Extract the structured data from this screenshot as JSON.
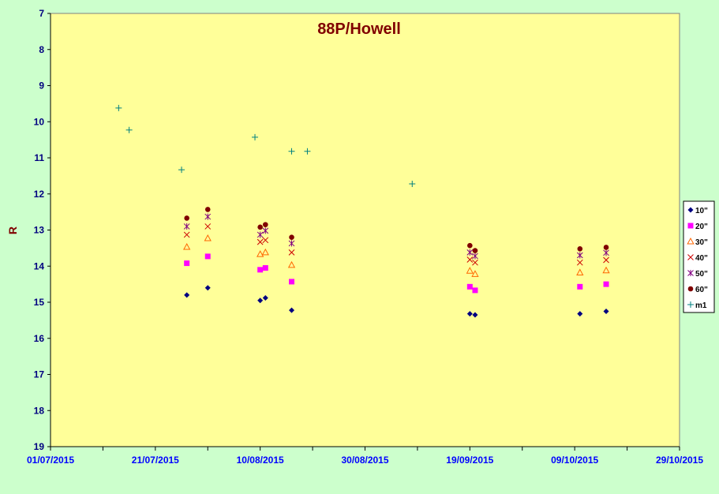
{
  "chart_data": {
    "type": "scatter",
    "title": "88P/Howell",
    "xlabel": "",
    "ylabel": "R",
    "ylim": [
      7,
      19
    ],
    "y_inverted": true,
    "yticks": [
      "7",
      "8",
      "9",
      "10",
      "11",
      "12",
      "13",
      "14",
      "15",
      "16",
      "17",
      "18",
      "19"
    ],
    "xlim": [
      "2015-07-01",
      "2015-10-29"
    ],
    "xticks": [
      "01/07/2015",
      "21/07/2015",
      "10/08/2015",
      "30/08/2015",
      "19/09/2015",
      "09/10/2015",
      "29/10/2015"
    ],
    "grid": false,
    "legend_position": "right",
    "colors": {
      "background": "#ccffcc",
      "plot_area": "#ffff99",
      "title": "#800000",
      "y_tick_labels": "#000080",
      "x_tick_labels": "#0000ff"
    },
    "series": [
      {
        "name": "10\"",
        "marker": "diamond",
        "color": "#000080",
        "points": [
          [
            "2015-07-27",
            14.8
          ],
          [
            "2015-07-31",
            14.6
          ],
          [
            "2015-08-10",
            14.95
          ],
          [
            "2015-08-11",
            14.88
          ],
          [
            "2015-08-16",
            15.22
          ],
          [
            "2015-09-19",
            15.32
          ],
          [
            "2015-09-20",
            15.35
          ],
          [
            "2015-10-10",
            15.32
          ],
          [
            "2015-10-15",
            15.25
          ]
        ]
      },
      {
        "name": "20\"",
        "marker": "square",
        "color": "#ff00ff",
        "points": [
          [
            "2015-07-27",
            13.92
          ],
          [
            "2015-07-31",
            13.73
          ],
          [
            "2015-08-10",
            14.1
          ],
          [
            "2015-08-11",
            14.05
          ],
          [
            "2015-08-16",
            14.43
          ],
          [
            "2015-09-19",
            14.57
          ],
          [
            "2015-09-20",
            14.67
          ],
          [
            "2015-10-10",
            14.57
          ],
          [
            "2015-10-15",
            14.5
          ]
        ]
      },
      {
        "name": "30\"",
        "marker": "triangle",
        "color": "#ff6600",
        "points": [
          [
            "2015-07-27",
            13.47
          ],
          [
            "2015-07-31",
            13.23
          ],
          [
            "2015-08-10",
            13.67
          ],
          [
            "2015-08-11",
            13.62
          ],
          [
            "2015-08-16",
            13.97
          ],
          [
            "2015-09-19",
            14.13
          ],
          [
            "2015-09-20",
            14.22
          ],
          [
            "2015-10-10",
            14.18
          ],
          [
            "2015-10-15",
            14.12
          ]
        ]
      },
      {
        "name": "40\"",
        "marker": "x",
        "color": "#cc0000",
        "points": [
          [
            "2015-07-27",
            13.13
          ],
          [
            "2015-07-31",
            12.9
          ],
          [
            "2015-08-10",
            13.33
          ],
          [
            "2015-08-11",
            13.28
          ],
          [
            "2015-08-16",
            13.62
          ],
          [
            "2015-09-19",
            13.82
          ],
          [
            "2015-09-20",
            13.9
          ],
          [
            "2015-10-10",
            13.9
          ],
          [
            "2015-10-15",
            13.83
          ]
        ]
      },
      {
        "name": "50\"",
        "marker": "star",
        "color": "#800080",
        "points": [
          [
            "2015-07-27",
            12.9
          ],
          [
            "2015-07-31",
            12.63
          ],
          [
            "2015-08-10",
            13.13
          ],
          [
            "2015-08-11",
            13.02
          ],
          [
            "2015-08-16",
            13.37
          ],
          [
            "2015-09-19",
            13.62
          ],
          [
            "2015-09-20",
            13.72
          ],
          [
            "2015-10-10",
            13.7
          ],
          [
            "2015-10-15",
            13.63
          ]
        ]
      },
      {
        "name": "60\"",
        "marker": "circle",
        "color": "#800000",
        "points": [
          [
            "2015-07-27",
            12.67
          ],
          [
            "2015-07-31",
            12.43
          ],
          [
            "2015-08-10",
            12.92
          ],
          [
            "2015-08-11",
            12.85
          ],
          [
            "2015-08-16",
            13.2
          ],
          [
            "2015-09-19",
            13.43
          ],
          [
            "2015-09-20",
            13.57
          ],
          [
            "2015-10-10",
            13.52
          ],
          [
            "2015-10-15",
            13.48
          ]
        ]
      },
      {
        "name": "m1",
        "marker": "plus",
        "color": "#008080",
        "points": [
          [
            "2015-07-14",
            9.62
          ],
          [
            "2015-07-16",
            10.23
          ],
          [
            "2015-07-26",
            11.33
          ],
          [
            "2015-08-09",
            10.43
          ],
          [
            "2015-08-16",
            10.82
          ],
          [
            "2015-08-19",
            10.82
          ],
          [
            "2015-09-08",
            11.72
          ]
        ]
      }
    ]
  }
}
